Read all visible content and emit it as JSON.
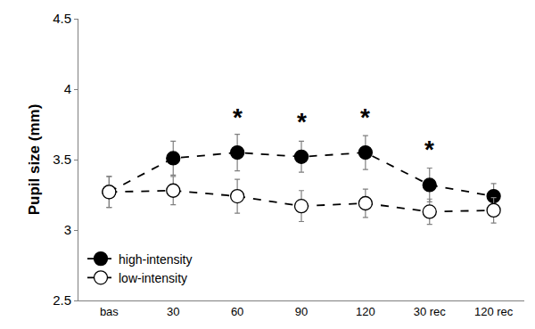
{
  "chart_data": {
    "type": "line",
    "y_label": "Pupil size (mm)",
    "categories": [
      "bas",
      "30",
      "60",
      "90",
      "120",
      "30 rec",
      "120 rec"
    ],
    "series": [
      {
        "name": "high-intensity",
        "color": "#000000",
        "marker": "circle",
        "line_style": "dash",
        "values": [
          3.27,
          3.51,
          3.55,
          3.52,
          3.55,
          3.32,
          3.24
        ],
        "errors": [
          0.11,
          0.12,
          0.13,
          0.11,
          0.12,
          0.12,
          0.09
        ]
      },
      {
        "name": "low-intensity",
        "color": "#000000",
        "marker": "circle-open",
        "line_style": "dash",
        "values": [
          3.27,
          3.28,
          3.24,
          3.17,
          3.19,
          3.13,
          3.14
        ],
        "errors": [
          0.11,
          0.1,
          0.12,
          0.11,
          0.1,
          0.09,
          0.09
        ]
      }
    ],
    "annotations": [
      {
        "text": "*",
        "x": "60",
        "y": 3.8
      },
      {
        "text": "*",
        "x": "90",
        "y": 3.77
      },
      {
        "text": "*",
        "x": "120",
        "y": 3.8
      },
      {
        "text": "*",
        "x": "30 rec",
        "y": 3.57
      }
    ],
    "ylim": [
      2.5,
      4.5
    ],
    "yticks": [
      2.5,
      3,
      3.5,
      4,
      4.5
    ],
    "grid": false,
    "legend": "lower left"
  }
}
